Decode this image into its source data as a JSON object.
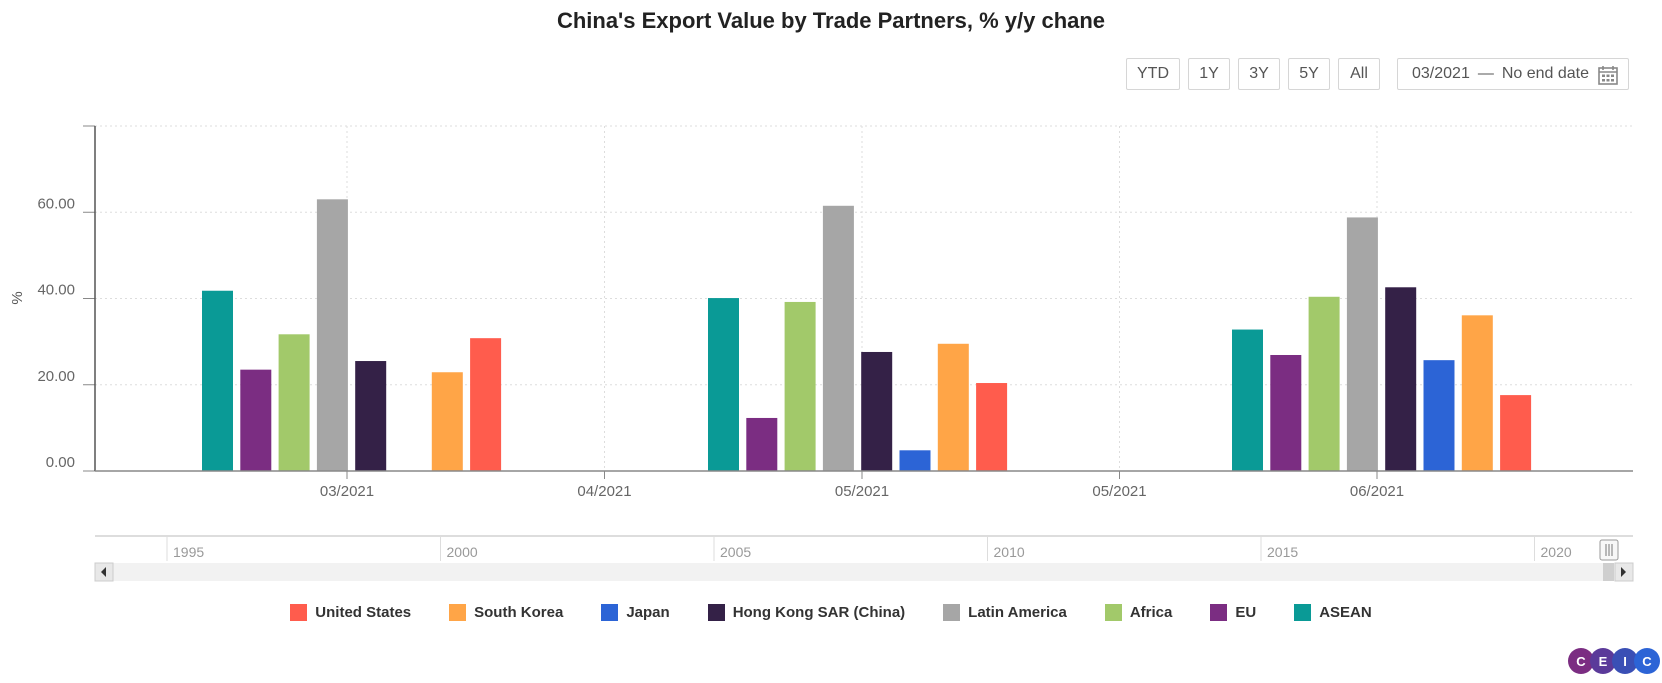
{
  "chart_data": {
    "type": "bar",
    "title": "China's Export Value by Trade Partners, % y/y chane",
    "ylabel": "%",
    "ylim": [
      0,
      80
    ],
    "yticks": [
      "0.00",
      "20.00",
      "40.00",
      "60.00"
    ],
    "ytick_values": [
      0,
      20,
      40,
      60
    ],
    "x_axis_labels": [
      "03/2021",
      "04/2021",
      "05/2021",
      "05/2021",
      "06/2021"
    ],
    "bar_order": [
      "ASEAN",
      "EU",
      "Africa",
      "Latin America",
      "Hong Kong SAR (China)",
      "Japan",
      "South Korea",
      "United States"
    ],
    "categories": [
      "03/2021",
      "05/2021",
      "06/2021"
    ],
    "series": [
      {
        "name": "ASEAN",
        "color": "#0a9a96",
        "values": [
          41.8,
          40.1,
          32.8
        ]
      },
      {
        "name": "EU",
        "color": "#7b2d82",
        "values": [
          23.5,
          12.3,
          26.9
        ]
      },
      {
        "name": "Africa",
        "color": "#a2c96a",
        "values": [
          31.7,
          39.2,
          40.4
        ]
      },
      {
        "name": "Latin America",
        "color": "#a6a6a6",
        "values": [
          63.0,
          61.5,
          58.8
        ]
      },
      {
        "name": "Hong Kong SAR (China)",
        "color": "#342147",
        "values": [
          25.5,
          27.6,
          42.6
        ]
      },
      {
        "name": "Japan",
        "color": "#2c64d6",
        "values": [
          null,
          4.8,
          25.7
        ]
      },
      {
        "name": "South Korea",
        "color": "#ffa547",
        "values": [
          22.9,
          29.5,
          36.1
        ]
      },
      {
        "name": "United States",
        "color": "#ff5c4d",
        "values": [
          30.8,
          20.4,
          17.6
        ]
      }
    ],
    "grid": true,
    "legend_position": "bottom"
  },
  "range_buttons": [
    "YTD",
    "1Y",
    "3Y",
    "5Y",
    "All"
  ],
  "date_range": {
    "start": "03/2021",
    "dash": "—",
    "end": "No end date"
  },
  "navigator": {
    "years": [
      "1995",
      "2000",
      "2005",
      "2010",
      "2015",
      "2020"
    ]
  },
  "legend": [
    "United States",
    "South Korea",
    "Japan",
    "Hong Kong SAR (China)",
    "Latin America",
    "Africa",
    "EU",
    "ASEAN"
  ],
  "logo": {
    "letters": [
      "C",
      "E",
      "I",
      "C"
    ],
    "colors": [
      "#7b2d82",
      "#5b3a9a",
      "#3a4fb5",
      "#2c64d6"
    ]
  }
}
